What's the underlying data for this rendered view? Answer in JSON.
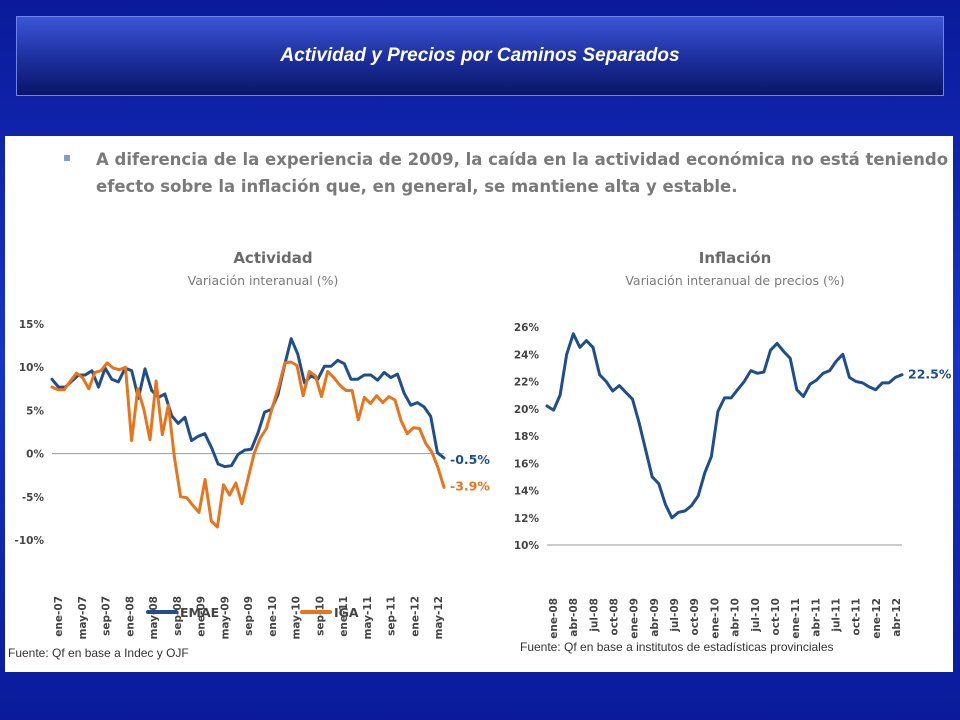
{
  "slide": {
    "title": "Actividad y Precios por Caminos Separados",
    "bullet_line1": "A diferencia de la experiencia de 2009, la caída en la actividad económica no está teniendo",
    "bullet_line2": "efecto sobre la inflación que, en general,  se mantiene alta y estable."
  },
  "colors": {
    "emae": "#1f4e8c",
    "iga": "#e8741c",
    "inflacion": "#1f4e8c"
  },
  "chart_data": [
    {
      "type": "line",
      "title": "Actividad",
      "subtitle": "Variación interanual (%)",
      "ylim": [
        -10,
        15
      ],
      "yticks": [
        15,
        10,
        5,
        0,
        -5,
        -10
      ],
      "ytick_labels": [
        "15%",
        "10%",
        "5%",
        "0%",
        "-5%",
        "-10%"
      ],
      "xtick_labels": [
        "ene-07",
        "may-07",
        "sep-07",
        "ene-08",
        "may-08",
        "sep-08",
        "ene-09",
        "may-09",
        "sep-09",
        "ene-10",
        "may-10",
        "sep-10",
        "ene-11",
        "may-11",
        "sep-11",
        "ene-12",
        "may-12"
      ],
      "legend_position": "bottom",
      "series": [
        {
          "name": "EMAE",
          "color": "#1f4e8c",
          "end_label": "-0.5%",
          "values": [
            8.6,
            7.7,
            7.7,
            8.4,
            9.1,
            9.1,
            9.6,
            7.7,
            9.9,
            8.6,
            8.3,
            9.9,
            9.6,
            6.4,
            9.8,
            7.3,
            6.5,
            6.9,
            4.4,
            3.5,
            4.2,
            1.5,
            2.0,
            2.3,
            0.7,
            -1.2,
            -1.5,
            -1.4,
            -0.1,
            0.4,
            0.5,
            2.4,
            4.8,
            5.1,
            6.8,
            10.2,
            13.3,
            11.5,
            8.2,
            9.0,
            8.6,
            10.1,
            10.1,
            10.8,
            10.4,
            8.6,
            8.6,
            9.1,
            9.1,
            8.5,
            9.4,
            8.8,
            9.2,
            7.0,
            5.6,
            5.9,
            5.4,
            4.3,
            0.1,
            -0.5
          ]
        },
        {
          "name": "IGA",
          "color": "#e8741c",
          "end_label": "-3.9%",
          "values": [
            7.7,
            7.4,
            7.4,
            8.4,
            9.3,
            8.8,
            7.5,
            9.4,
            9.6,
            10.5,
            9.9,
            9.7,
            10.0,
            1.5,
            7.5,
            5.1,
            1.6,
            8.4,
            2.2,
            5.6,
            -0.5,
            -5.0,
            -5.1,
            -6.0,
            -6.8,
            -3.0,
            -7.8,
            -8.5,
            -3.6,
            -4.8,
            -3.4,
            -5.8,
            -2.9,
            0.0,
            1.8,
            2.9,
            5.4,
            7.7,
            10.5,
            10.6,
            10.2,
            6.7,
            9.5,
            9.0,
            6.6,
            9.5,
            8.8,
            7.9,
            7.3,
            7.3,
            3.9,
            6.5,
            5.8,
            6.7,
            5.9,
            6.6,
            6.2,
            3.8,
            2.3,
            3.0,
            2.9,
            1.2,
            0.2,
            -1.6,
            -3.9
          ]
        }
      ]
    },
    {
      "type": "line",
      "title": "Inflación",
      "subtitle": "Variación interanual de precios (%)",
      "ylim": [
        10,
        26
      ],
      "yticks": [
        26,
        24,
        22,
        20,
        18,
        16,
        14,
        12,
        10
      ],
      "ytick_labels": [
        "26%",
        "24%",
        "22%",
        "20%",
        "18%",
        "16%",
        "14%",
        "12%",
        "10%"
      ],
      "xtick_labels": [
        "ene-08",
        "abr-08",
        "jul-08",
        "oct-08",
        "ene-09",
        "abr-09",
        "jul-09",
        "oct-09",
        "ene-10",
        "abr-10",
        "jul-10",
        "oct-10",
        "ene-11",
        "abr-11",
        "jul-11",
        "oct-11",
        "ene-12",
        "abr-12"
      ],
      "series": [
        {
          "name": "Inflación",
          "color": "#1f4e8c",
          "end_label": "22.5%",
          "values": [
            20.2,
            19.9,
            21.0,
            24.0,
            25.5,
            24.5,
            25.0,
            24.5,
            22.5,
            22.0,
            21.3,
            21.7,
            21.2,
            20.7,
            19.0,
            17.0,
            15.0,
            14.5,
            13.0,
            12.0,
            12.4,
            12.5,
            12.9,
            13.6,
            15.3,
            16.5,
            19.8,
            20.8,
            20.8,
            21.4,
            22.0,
            22.8,
            22.6,
            22.7,
            24.3,
            24.8,
            24.2,
            23.7,
            21.4,
            20.9,
            21.8,
            22.1,
            22.6,
            22.8,
            23.5,
            24.0,
            22.3,
            22.0,
            21.9,
            21.6,
            21.4,
            21.9,
            21.9,
            22.3,
            22.5
          ]
        }
      ]
    }
  ],
  "legend": {
    "emae_label": "EMAE",
    "iga_label": "IGA"
  },
  "sources": {
    "left": "Fuente: Qf en base a Indec y OJF",
    "right": "Fuente: Qf en base a institutos de estadísticas provinciales"
  }
}
